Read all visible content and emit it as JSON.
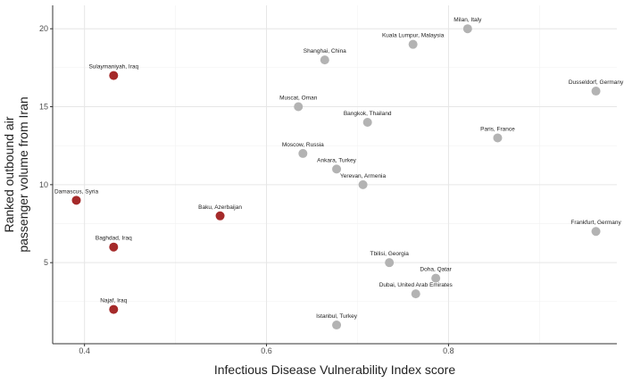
{
  "chart_data": {
    "type": "scatter",
    "title": "",
    "xlabel": "Infectious Disease Vulnerability Index score",
    "ylabel_lines": [
      "Ranked outbound air",
      "passenger volume from Iran"
    ],
    "xlim": [
      0.365,
      0.985
    ],
    "ylim": [
      -0.2,
      21.5
    ],
    "x_ticks": [
      0.4,
      0.6,
      0.8
    ],
    "x_tick_labels": [
      "0.4",
      "0.6",
      "0.8"
    ],
    "y_ticks": [
      5,
      10,
      15,
      20
    ],
    "y_tick_labels": [
      "5",
      "10",
      "15",
      "20"
    ],
    "grid": true,
    "legend": "none",
    "colors": {
      "red": "#a52a2a",
      "gray": "#b3b3b3"
    },
    "points": [
      {
        "label": "Milan, Italy",
        "x": 0.821,
        "y": 20,
        "color": "gray"
      },
      {
        "label": "Kuala Lumpur, Malaysia",
        "x": 0.761,
        "y": 19,
        "color": "gray"
      },
      {
        "label": "Shanghai, China",
        "x": 0.664,
        "y": 18,
        "color": "gray"
      },
      {
        "label": "Sulaymaniyah, Iraq",
        "x": 0.432,
        "y": 17,
        "color": "red"
      },
      {
        "label": "Dusseldorf, Germany",
        "x": 0.962,
        "y": 16,
        "color": "gray"
      },
      {
        "label": "Muscat, Oman",
        "x": 0.635,
        "y": 15,
        "color": "gray"
      },
      {
        "label": "Bangkok, Thailand",
        "x": 0.711,
        "y": 14,
        "color": "gray"
      },
      {
        "label": "Paris, France",
        "x": 0.854,
        "y": 13,
        "color": "gray"
      },
      {
        "label": "Moscow, Russia",
        "x": 0.64,
        "y": 12,
        "color": "gray"
      },
      {
        "label": "Ankara, Turkey",
        "x": 0.677,
        "y": 11,
        "color": "gray"
      },
      {
        "label": "Yerevan, Armenia",
        "x": 0.706,
        "y": 10,
        "color": "gray"
      },
      {
        "label": "Damascus, Syria",
        "x": 0.391,
        "y": 9,
        "color": "red"
      },
      {
        "label": "Baku, Azerbaijan",
        "x": 0.549,
        "y": 8,
        "color": "red"
      },
      {
        "label": "Frankfurt, Germany",
        "x": 0.962,
        "y": 7,
        "color": "gray"
      },
      {
        "label": "Baghdad, Iraq",
        "x": 0.432,
        "y": 6,
        "color": "red"
      },
      {
        "label": "Tbilisi, Georgia",
        "x": 0.735,
        "y": 5,
        "color": "gray"
      },
      {
        "label": "Doha, Qatar",
        "x": 0.786,
        "y": 4,
        "color": "gray"
      },
      {
        "label": "Dubai, United Arab Emirates",
        "x": 0.764,
        "y": 3,
        "color": "gray"
      },
      {
        "label": "Najaf, Iraq",
        "x": 0.432,
        "y": 2,
        "color": "red"
      },
      {
        "label": "Istanbul, Turkey",
        "x": 0.677,
        "y": 1,
        "color": "gray"
      }
    ]
  }
}
